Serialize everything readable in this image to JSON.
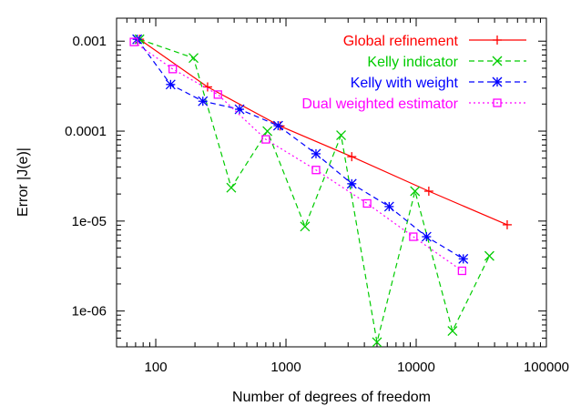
{
  "chart_data": {
    "type": "line",
    "title": "",
    "xlabel": "Number of degrees of freedom",
    "ylabel": "Error |J(e)|",
    "xscale": "log",
    "yscale": "log",
    "xlim": [
      50,
      100000
    ],
    "ylim": [
      4e-07,
      0.0018
    ],
    "grid": false,
    "legend_position": "top-right",
    "x_ticks": [
      {
        "value": 100,
        "label": "100"
      },
      {
        "value": 1000,
        "label": "1000"
      },
      {
        "value": 10000,
        "label": "10000"
      },
      {
        "value": 100000,
        "label": "100000"
      }
    ],
    "y_ticks": [
      {
        "value": 0.001,
        "label": "0.001"
      },
      {
        "value": 0.0001,
        "label": "0.0001"
      },
      {
        "value": 1e-05,
        "label": "1e-05"
      },
      {
        "value": 1e-06,
        "label": "1e-06"
      }
    ],
    "series": [
      {
        "name": "Global refinement",
        "color": "#ff0000",
        "marker": "plus",
        "dash": "solid",
        "points": [
          [
            75,
            0.00105
          ],
          [
            250,
            0.00031
          ],
          [
            900,
            0.000114
          ],
          [
            3200,
            5.2e-05
          ],
          [
            12500,
            2.15e-05
          ],
          [
            50000,
            9.1e-06
          ]
        ]
      },
      {
        "name": "Kelly indicator",
        "color": "#00cc00",
        "marker": "cross",
        "dash": "dashed",
        "points": [
          [
            75,
            0.00105
          ],
          [
            195,
            0.00065
          ],
          [
            380,
            2.35e-05
          ],
          [
            720,
            0.0001
          ],
          [
            1400,
            8.7e-06
          ],
          [
            2650,
            9e-05
          ],
          [
            5000,
            4.5e-07
          ],
          [
            9800,
            2.15e-05
          ],
          [
            19000,
            6e-07
          ],
          [
            36500,
            4.1e-06
          ]
        ]
      },
      {
        "name": "Kelly with weight",
        "color": "#0000ff",
        "marker": "star",
        "dash": "dashed",
        "points": [
          [
            72,
            0.00105
          ],
          [
            130,
            0.00033
          ],
          [
            230,
            0.000215
          ],
          [
            440,
            0.000175
          ],
          [
            870,
            0.000115
          ],
          [
            1700,
            5.6e-05
          ],
          [
            3200,
            2.6e-05
          ],
          [
            6200,
            1.45e-05
          ],
          [
            12000,
            6.7e-06
          ],
          [
            23000,
            3.8e-06
          ]
        ]
      },
      {
        "name": "Dual weighted estimator",
        "color": "#ff00ff",
        "marker": "square",
        "dash": "dotted",
        "points": [
          [
            68,
            0.00098
          ],
          [
            135,
            0.00049
          ],
          [
            300,
            0.000255
          ],
          [
            700,
            8.1e-05
          ],
          [
            1700,
            3.7e-05
          ],
          [
            4200,
            1.57e-05
          ],
          [
            9500,
            6.7e-06
          ],
          [
            22500,
            2.8e-06
          ]
        ]
      }
    ]
  }
}
